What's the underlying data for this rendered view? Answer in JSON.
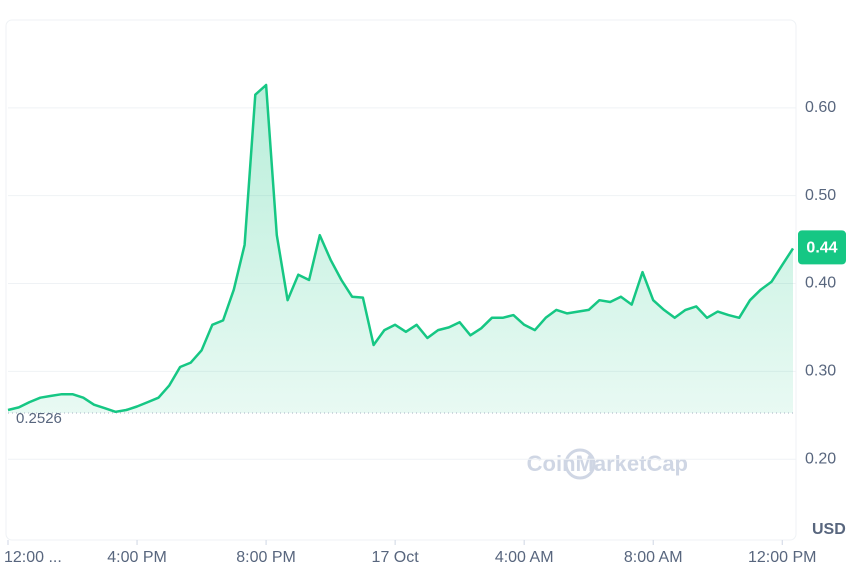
{
  "chart_data": {
    "type": "line",
    "values": [
      0.256,
      0.259,
      0.265,
      0.27,
      0.272,
      0.274,
      0.274,
      0.27,
      0.262,
      0.258,
      0.254,
      0.256,
      0.26,
      0.265,
      0.27,
      0.284,
      0.305,
      0.31,
      0.324,
      0.353,
      0.358,
      0.393,
      0.444,
      0.615,
      0.626,
      0.455,
      0.381,
      0.41,
      0.404,
      0.455,
      0.427,
      0.404,
      0.385,
      0.384,
      0.33,
      0.347,
      0.353,
      0.345,
      0.353,
      0.338,
      0.347,
      0.35,
      0.356,
      0.341,
      0.349,
      0.361,
      0.361,
      0.364,
      0.353,
      0.347,
      0.361,
      0.37,
      0.366,
      0.368,
      0.37,
      0.381,
      0.379,
      0.385,
      0.376,
      0.413,
      0.381,
      0.37,
      0.361,
      0.37,
      0.374,
      0.361,
      0.368,
      0.364,
      0.361,
      0.381,
      0.393,
      0.402,
      0.421,
      0.44
    ],
    "color": "#16c784",
    "color_below": "#ea3943",
    "baseline": {
      "value": 0.2526,
      "label": "0.2526"
    },
    "last_price": {
      "value": 0.44,
      "label": "0.44"
    },
    "xlim": [
      0,
      73
    ],
    "xticks": [
      {
        "value": 0,
        "label": "12:00 ..."
      },
      {
        "value": 12,
        "label": "4:00 PM"
      },
      {
        "value": 24,
        "label": "8:00 PM"
      },
      {
        "value": 36,
        "label": "17 Oct"
      },
      {
        "value": 48,
        "label": "4:00 AM"
      },
      {
        "value": 60,
        "label": "8:00 AM"
      },
      {
        "value": 72,
        "label": "12:00 PM"
      }
    ],
    "ylim": [
      0.108,
      0.7
    ],
    "yticks": [
      {
        "value": 0.2,
        "label": "0.20"
      },
      {
        "value": 0.3,
        "label": "0.30"
      },
      {
        "value": 0.4,
        "label": "0.40"
      },
      {
        "value": 0.5,
        "label": "0.50"
      },
      {
        "value": 0.6,
        "label": "0.60"
      }
    ],
    "y_unit": "USD",
    "watermark": "CoinMarketCap",
    "grid": true
  }
}
